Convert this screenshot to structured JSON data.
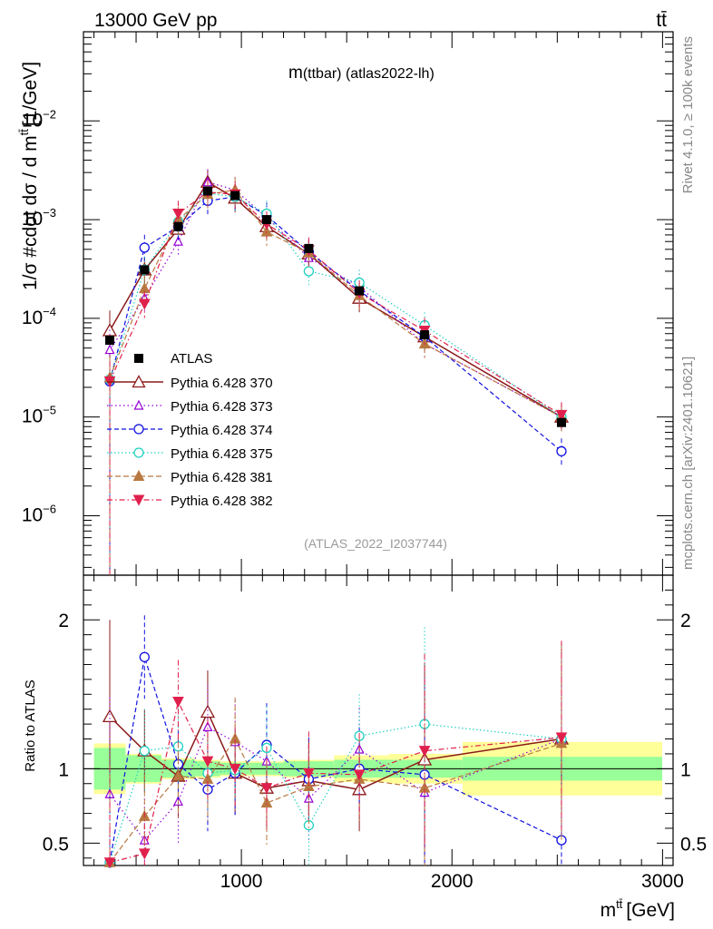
{
  "header": {
    "energy": "13000 GeV pp",
    "process": "tt̄"
  },
  "side_labels": {
    "rivet": "Rivet 4.1.0, ≥ 100k events",
    "mcplots": "mcplots.cern.ch [arXiv:2401.10621]"
  },
  "colors": {
    "ATLAS": "#000000",
    "370": "#8b1a1a",
    "373": "#9400d3",
    "374": "#1010e0",
    "375": "#20d0c0",
    "381": "#b87840",
    "382": "#e0204c",
    "band_inner": "#99ff99",
    "band_outer": "#ffff99"
  },
  "chart_data": [
    {
      "type": "scatter",
      "scale": "log",
      "title": "m(ttbar) (atlas2022-lh)",
      "title_main": "m",
      "title_rest": "(ttbar) (atlas2022-lh)",
      "watermark": "(ATLAS_2022_I2037744)",
      "ylabel": "1/σ #cdot dσ / d m^{tt̄} [1/GeV]",
      "ylabel_main": "1/σ #cdot dσ / d m",
      "ylabel_sup": "tt̄",
      "ylabel_unit": "[1/GeV]",
      "xlim": [
        250,
        3050
      ],
      "ylim": [
        2.5e-07,
        0.08
      ],
      "ytick_labels": [
        {
          "base": "10",
          "exp": "−6",
          "value": 1e-06
        },
        {
          "base": "10",
          "exp": "−5",
          "value": 1e-05
        },
        {
          "base": "10",
          "exp": "−4",
          "value": 0.0001
        },
        {
          "base": "10",
          "exp": "−3",
          "value": 0.001
        },
        {
          "base": "10",
          "exp": "−2",
          "value": 0.01
        }
      ],
      "x": [
        375,
        540,
        700,
        840,
        970,
        1120,
        1320,
        1560,
        1870,
        2520
      ],
      "series": [
        {
          "name": "ATLAS",
          "key": "ATLAS",
          "values": [
            6e-05,
            0.00031,
            0.00085,
            0.00195,
            0.00175,
            0.001,
            0.00051,
            0.00019,
            6.8e-05,
            8.8e-06
          ]
        },
        {
          "name": "Pythia 6.428 370",
          "key": "370",
          "values": [
            7.5e-05,
            0.00031,
            0.0008,
            0.0024,
            0.00165,
            0.00085,
            0.00045,
            0.00016,
            6.5e-05,
            1e-05
          ]
        },
        {
          "name": "Pythia 6.428 373",
          "key": "373",
          "values": [
            4.8e-05,
            0.00016,
            0.0006,
            0.0024,
            0.002,
            0.00105,
            0.00041,
            0.00021,
            5.5e-05,
            1e-05
          ]
        },
        {
          "name": "Pythia 6.428 374",
          "key": "374",
          "values": [
            2.3e-05,
            0.00052,
            0.00085,
            0.00155,
            0.0017,
            0.0011,
            0.00047,
            0.00019,
            6.5e-05,
            4.5e-06
          ]
        },
        {
          "name": "Pythia 6.428 375",
          "key": "375",
          "values": [
            2.4e-05,
            0.00031,
            0.00095,
            0.00185,
            0.0017,
            0.00115,
            0.0003,
            0.00023,
            8.5e-05,
            1e-05
          ]
        },
        {
          "name": "Pythia 6.428 381",
          "key": "381",
          "values": [
            2.5e-05,
            0.0002,
            0.001,
            0.0018,
            0.002,
            0.00075,
            0.00046,
            0.00017,
            5.5e-05,
            1e-05
          ]
        },
        {
          "name": "Pythia 6.428 382",
          "key": "382",
          "values": [
            2.3e-05,
            0.00014,
            0.00115,
            0.0019,
            0.0018,
            0.0009,
            0.00049,
            0.00018,
            7.5e-05,
            1.05e-05
          ]
        }
      ]
    },
    {
      "type": "scatter",
      "scale": "linear",
      "ylabel": "Ratio to ATLAS",
      "xlabel": "m^{tt̄} [GeV]",
      "xlabel_main": "m",
      "xlabel_sup": "tt̄",
      "xlabel_unit": "[GeV]",
      "xlim": [
        250,
        3050
      ],
      "ylim": [
        0.35,
        2.3
      ],
      "xtick_labels": [
        "1000",
        "2000",
        "3000"
      ],
      "ytick_labels": [
        "0.5",
        "1",
        "2"
      ],
      "x": [
        375,
        540,
        700,
        840,
        970,
        1120,
        1320,
        1560,
        1870,
        2520
      ],
      "bins": [
        300,
        450,
        620,
        780,
        900,
        1040,
        1200,
        1440,
        1700,
        2050,
        3000
      ],
      "band_inner": [
        0.14,
        0.09,
        0.06,
        0.05,
        0.04,
        0.04,
        0.05,
        0.06,
        0.06,
        0.08
      ],
      "band_outer": [
        0.17,
        0.1,
        0.07,
        0.06,
        0.05,
        0.05,
        0.06,
        0.09,
        0.1,
        0.18
      ],
      "series": [
        {
          "name": "Pythia 6.428 370",
          "key": "370",
          "values": [
            1.35,
            1.12,
            0.95,
            1.38,
            0.97,
            0.87,
            0.92,
            0.86,
            1.06,
            1.2
          ]
        },
        {
          "name": "Pythia 6.428 373",
          "key": "373",
          "values": [
            0.83,
            0.52,
            0.78,
            1.28,
            1.18,
            1.05,
            0.8,
            1.13,
            0.84,
            1.2
          ]
        },
        {
          "name": "Pythia 6.428 374",
          "key": "374",
          "values": [
            0.37,
            1.75,
            1.03,
            0.86,
            0.97,
            1.16,
            0.93,
            1.0,
            0.96,
            0.52
          ]
        },
        {
          "name": "Pythia 6.428 375",
          "key": "375",
          "values": [
            0.37,
            1.12,
            1.15,
            0.97,
            0.99,
            1.14,
            0.62,
            1.22,
            1.3,
            1.2
          ]
        },
        {
          "name": "Pythia 6.428 381",
          "key": "381",
          "values": [
            0.37,
            0.68,
            0.95,
            0.93,
            1.2,
            0.77,
            0.88,
            0.93,
            0.87,
            1.17
          ]
        },
        {
          "name": "Pythia 6.428 382",
          "key": "382",
          "values": [
            0.37,
            0.43,
            1.45,
            1.05,
            1.0,
            0.87,
            0.97,
            0.96,
            1.12,
            1.21
          ]
        }
      ]
    }
  ]
}
